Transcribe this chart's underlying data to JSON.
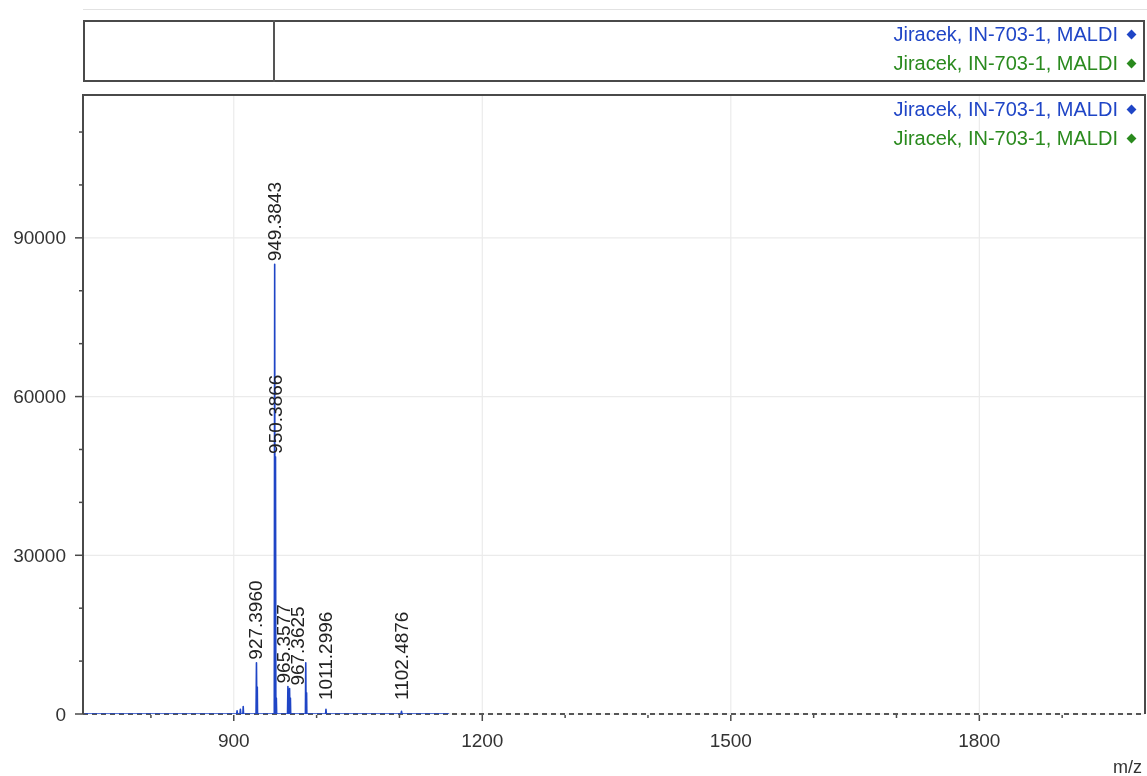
{
  "chart_data": [
    {
      "type": "other",
      "legend": "top right",
      "series": [
        {
          "name": "Jiracek, IN-703-1, MALDI",
          "color": "#1f45c6"
        },
        {
          "name": "Jiracek, IN-703-1, MALDI",
          "color": "#2a8a1e"
        }
      ]
    },
    {
      "type": "line",
      "x": [
        720,
        900,
        903.5,
        904,
        904.5,
        907.5,
        908,
        908.5,
        911,
        911.4,
        911.8,
        926.9,
        927.396,
        927.9,
        928.1,
        928.4,
        928.7,
        948.9,
        949.3843,
        949.8,
        950.0,
        950.3866,
        950.8,
        951.0,
        951.39,
        951.8,
        964.9,
        965.3577,
        965.8,
        966.0,
        966.36,
        966.7,
        966.9,
        967.3625,
        967.8,
        968.0,
        968.37,
        968.7,
        986.5,
        986.9,
        987.3,
        987.6,
        987.9,
        988.2,
        1010.8,
        1011.2996,
        1011.8,
        1101.9,
        1102.4876,
        1103.0,
        1160
      ],
      "series": [
        {
          "name": "Jiracek, IN-703-1, MALDI",
          "color": "#1f45c6",
          "values": [
            0,
            0,
            0,
            600,
            0,
            0,
            900,
            0,
            0,
            1400,
            0,
            0,
            9700,
            0,
            0,
            5100,
            0,
            0,
            85000,
            0,
            0,
            48600,
            0,
            0,
            3000,
            0,
            0,
            5200,
            0,
            0,
            4000,
            0,
            0,
            4800,
            0,
            0,
            3000,
            0,
            0,
            9700,
            0,
            0,
            4000,
            0,
            0,
            900,
            0,
            0,
            500,
            0,
            0
          ]
        },
        {
          "name": "Jiracek, IN-703-1, MALDI",
          "color": "#2a8a1e",
          "values": [
            null,
            null,
            null,
            null,
            null,
            null,
            null,
            null,
            null,
            null,
            null,
            null,
            null,
            null,
            null,
            null,
            null,
            null,
            null,
            null,
            null,
            null,
            null,
            null,
            null,
            null,
            null,
            null,
            null,
            null,
            null,
            null,
            null,
            null,
            null,
            null,
            null,
            null,
            null,
            null,
            null,
            null,
            null,
            null,
            null,
            null,
            null,
            null,
            null,
            null,
            null
          ]
        }
      ],
      "xlim": [
        718,
        2000
      ],
      "ylim": [
        0,
        117000
      ],
      "xticks": [
        {
          "value": 800,
          "label": null
        },
        900,
        {
          "value": 1000,
          "label": null
        },
        {
          "value": 1100,
          "label": null
        },
        1200,
        {
          "value": 1300,
          "label": null
        },
        {
          "value": 1400,
          "label": null
        },
        1500,
        {
          "value": 1600,
          "label": null
        },
        {
          "value": 1700,
          "label": null
        },
        1800,
        {
          "value": 1900,
          "label": null
        }
      ],
      "yticks": [
        0,
        {
          "value": 10000,
          "label": null
        },
        {
          "value": 20000,
          "label": null
        },
        30000,
        {
          "value": 40000,
          "label": null
        },
        {
          "value": 50000,
          "label": null
        },
        60000,
        {
          "value": 70000,
          "label": null
        },
        {
          "value": 80000,
          "label": null
        },
        90000,
        {
          "value": 100000,
          "label": null
        },
        {
          "value": 110000,
          "label": null
        }
      ],
      "grid": true,
      "legend": "top right",
      "xlabel": "m/z",
      "ref_lines": [
        {
          "axis": "y",
          "value": 0,
          "color": "#222222",
          "line_style": "dashed"
        }
      ],
      "annotations": [
        {
          "text": "949.3843",
          "x": 949.3843,
          "y": 85000
        },
        {
          "text": "950.3866",
          "x": 950.3866,
          "y": 48600
        },
        {
          "text": "927.3960",
          "x": 927.396,
          "y": 9700
        },
        {
          "text": "965.3577",
          "x": 965.3577,
          "y": 5200
        },
        {
          "text": "967.3625",
          "x": 967.3625,
          "y": 4800
        },
        {
          "text": "1011.2996",
          "x": 1011.2996,
          "y": 900
        },
        {
          "text": "1102.4876",
          "x": 1102.4876,
          "y": 500
        }
      ]
    }
  ]
}
